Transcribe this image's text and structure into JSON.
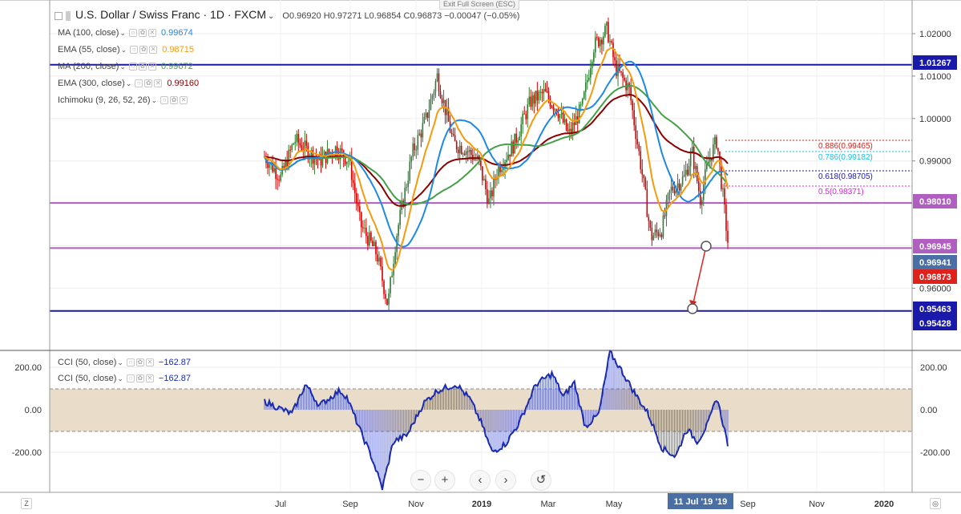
{
  "window": {
    "exit_fullscreen_hint": "Exit Full Screen (ESC)"
  },
  "header": {
    "title": "U.S. Dollar / Swiss Franc · 1D · FXCM",
    "ohlc": "O0.96920  H0.97271  L0.96854  C0.96873  −0.00047 (−0.05%)"
  },
  "indicators": [
    {
      "label": "MA (100, close)",
      "value": "0.99674",
      "color": "#1e88e5"
    },
    {
      "label": "EMA (55, close)",
      "value": "0.98715",
      "color": "#f59a0c"
    },
    {
      "label": "MA (200, close)",
      "value": "0.99672",
      "color": "#43a047"
    },
    {
      "label": "EMA (300, close)",
      "value": "0.99160",
      "color": "#8b0000"
    },
    {
      "label": "Ichimoku (9, 26, 52, 26)",
      "value": "",
      "color": "#888888"
    }
  ],
  "cci_panel": {
    "legends": [
      {
        "label": "CCI (50, close)",
        "value": "−162.87"
      },
      {
        "label": "CCI (50, close)",
        "value": "−162.87"
      }
    ],
    "axis_labels": [
      "200.00",
      "0.00",
      "-200.00"
    ]
  },
  "price_axis": {
    "labels": [
      "1.02000",
      "1.01000",
      "1.00000",
      "0.99000",
      "0.96000"
    ],
    "tags": [
      {
        "text": "1.01267",
        "bg": "#1a1aaa"
      },
      {
        "text": "0.98010",
        "bg": "#b05ec0"
      },
      {
        "text": "0.96945",
        "bg": "#b05ec0"
      },
      {
        "text": "0.96941",
        "bg": "#4a6fa5"
      },
      {
        "text": "0.96873",
        "bg": "#e0201b"
      },
      {
        "text": "0.95463",
        "bg": "#1a1aaa"
      },
      {
        "text": "0.95428",
        "bg": "#1a1aaa"
      }
    ]
  },
  "fibonacci": [
    {
      "text": "0.886(0.99465)",
      "color": "#e0201b"
    },
    {
      "text": "0.786(0.99182)",
      "color": "#13c2e8"
    },
    {
      "text": "0.618(0.98705)",
      "color": "#1a1aaa"
    },
    {
      "text": "0.5(0.98371)",
      "color": "#e020e0"
    }
  ],
  "time_axis": {
    "labels": [
      "Jul",
      "Sep",
      "Nov",
      "2019",
      "Mar",
      "May",
      "Sep",
      "Nov",
      "2020"
    ],
    "crosshair_label": "11 Jul '19 '19"
  },
  "nav_buttons": [
    "−",
    "+",
    "‹",
    "›",
    "↺"
  ],
  "corners": {
    "left": "Z",
    "right": "◎"
  },
  "chart_data": {
    "type": "candlestick",
    "symbol": "USDCHF",
    "timeframe": "1D",
    "horizontal_levels": [
      1.01267,
      0.9801,
      0.96945,
      0.95463
    ],
    "last": 0.96873,
    "cci_last": -162.87,
    "colors": {
      "up": "#2e7d32",
      "down": "#d50000",
      "cci_line": "#1a2bb0",
      "cci_band": "#e9dcc8"
    }
  }
}
